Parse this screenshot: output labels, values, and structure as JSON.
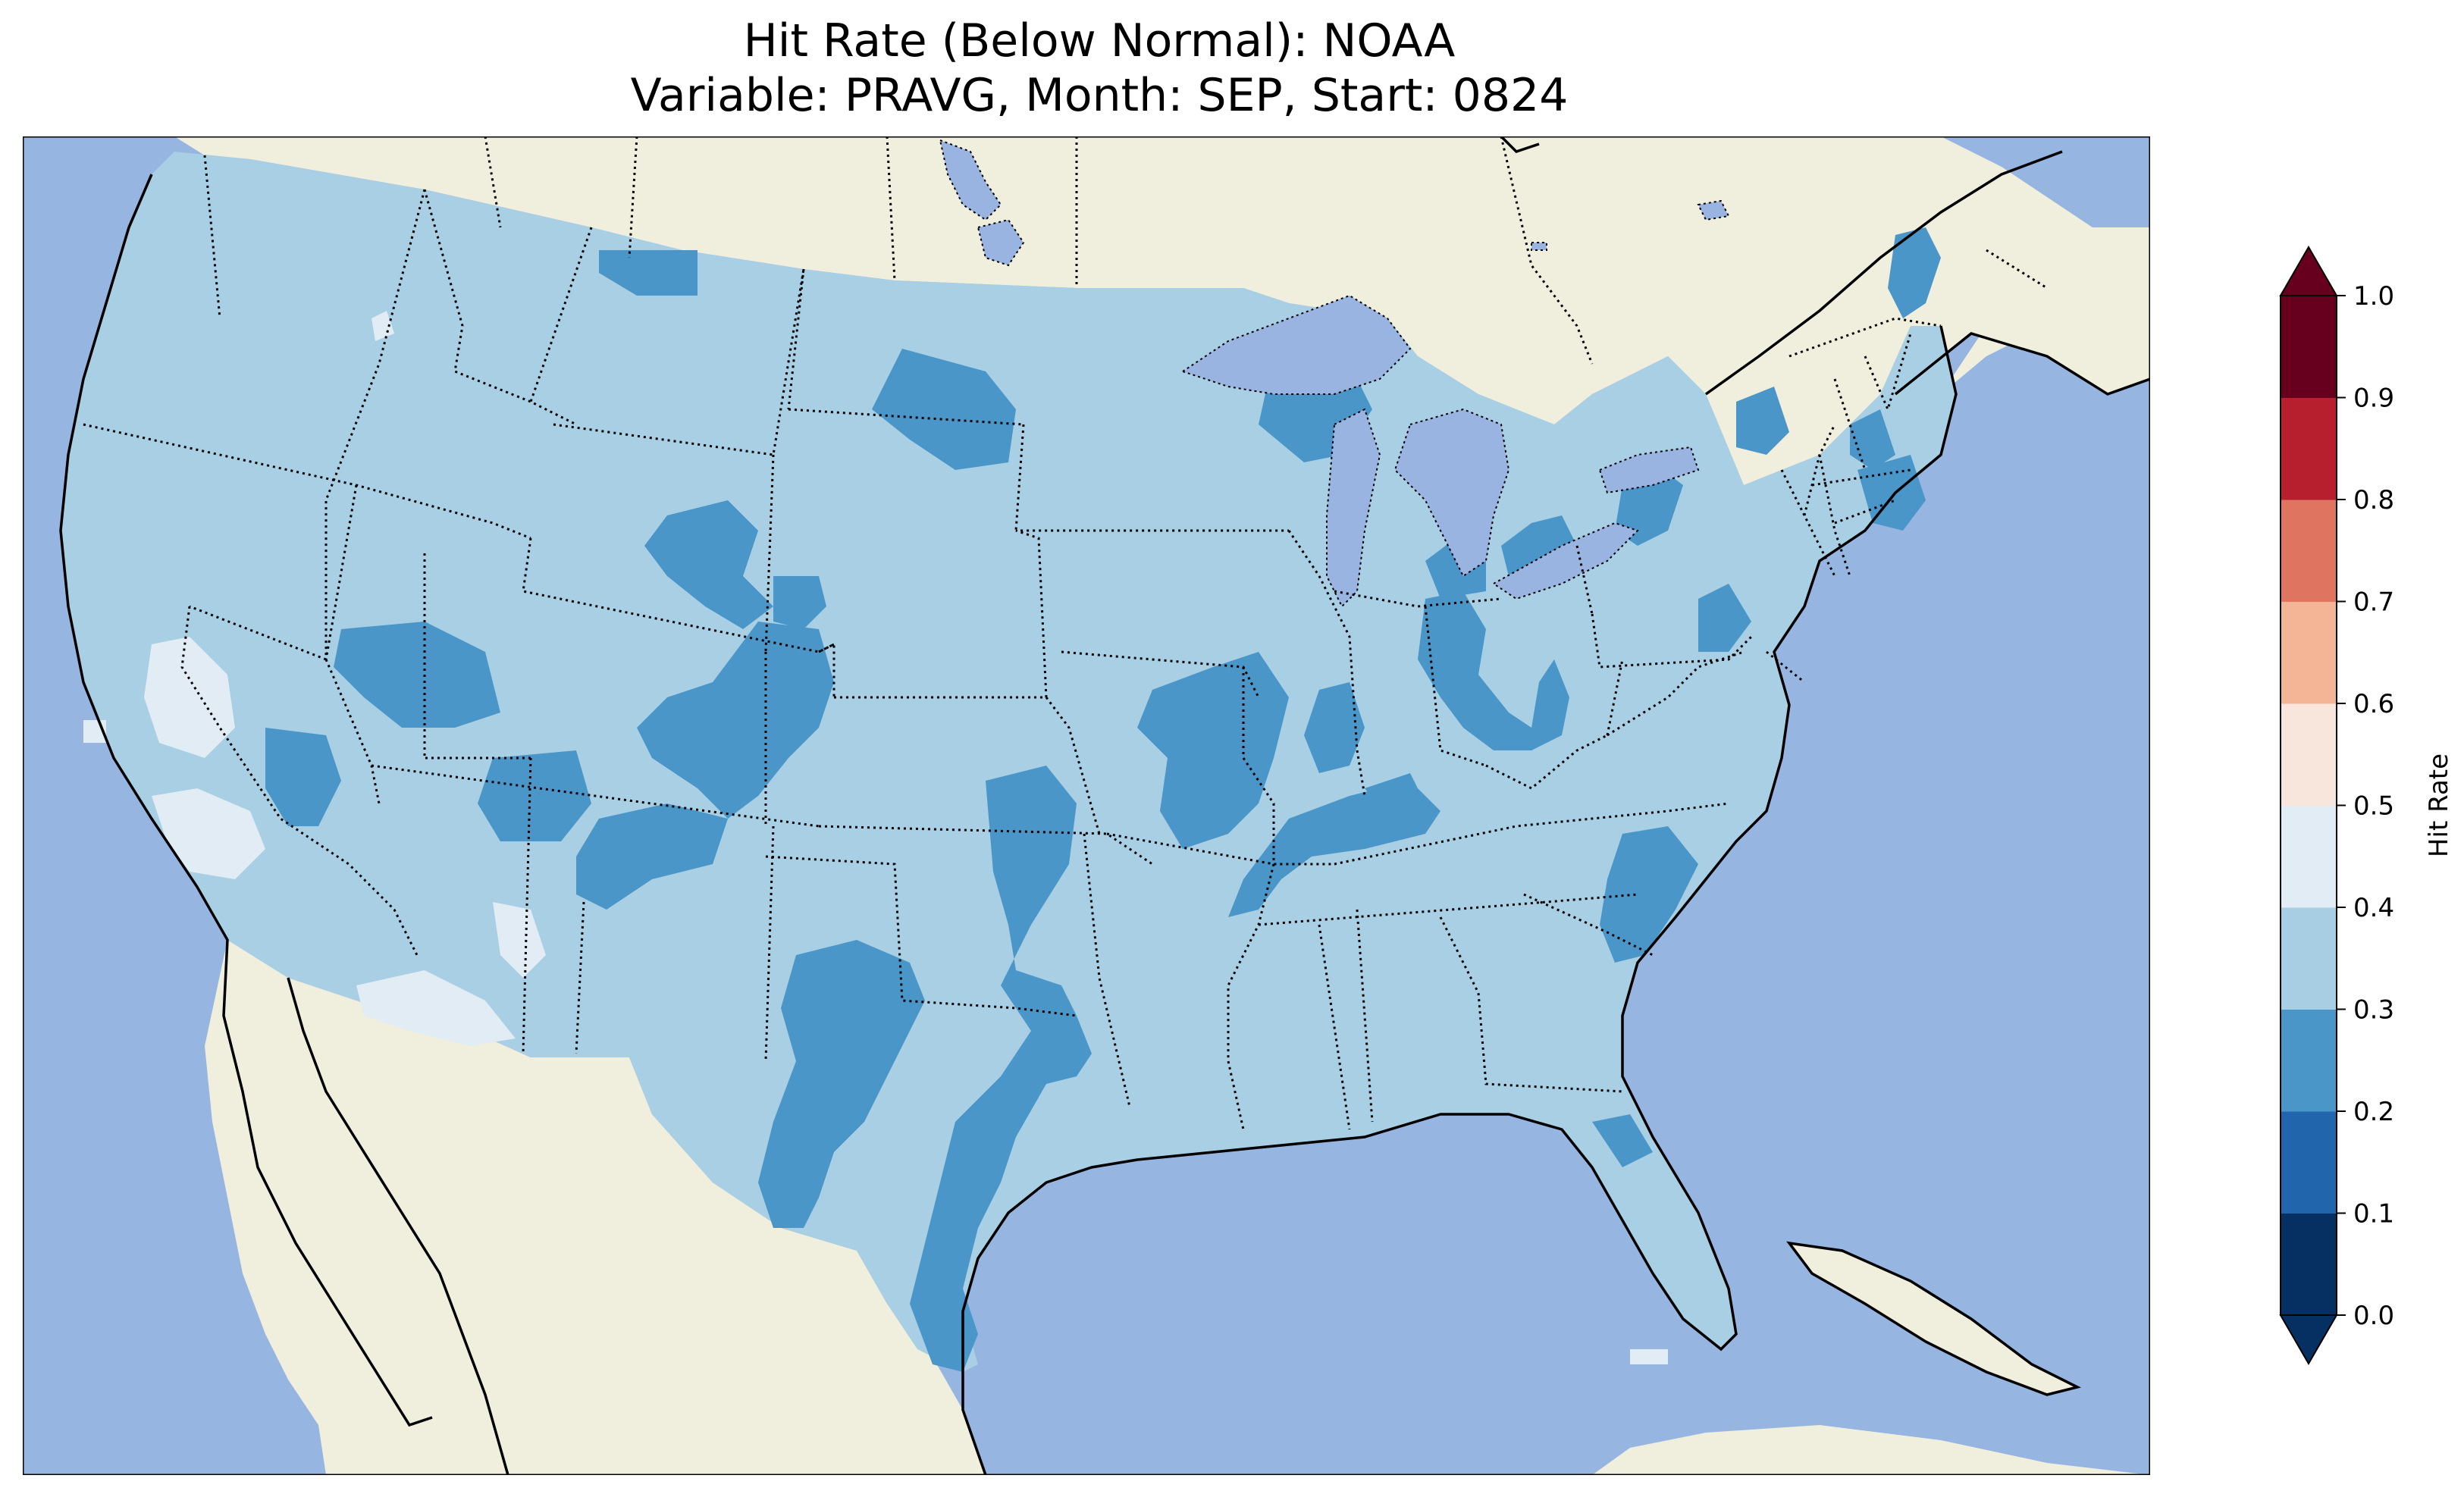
{
  "title": {
    "line1": "Hit Rate (Below Normal): NOAA",
    "line2": "Variable: PRAVG, Month: SEP, Start: 0824"
  },
  "map": {
    "ocean_color": "#96b5e0",
    "land_color": "#f0eedc",
    "lake_color": "#9ab4e2",
    "domain_fill_color": "#a8cfe3",
    "region": "Contiguous United States"
  },
  "colorbar": {
    "label": "Hit Rate",
    "ticks": [
      "0.0",
      "0.1",
      "0.2",
      "0.3",
      "0.4",
      "0.5",
      "0.6",
      "0.7",
      "0.8",
      "0.9",
      "1.0"
    ],
    "bins": [
      {
        "from": 0.0,
        "to": 0.1,
        "color": "#053061"
      },
      {
        "from": 0.1,
        "to": 0.2,
        "color": "#2166ac"
      },
      {
        "from": 0.2,
        "to": 0.3,
        "color": "#4a96c8"
      },
      {
        "from": 0.3,
        "to": 0.4,
        "color": "#a7cee3"
      },
      {
        "from": 0.4,
        "to": 0.5,
        "color": "#e1ecf4"
      },
      {
        "from": 0.5,
        "to": 0.6,
        "color": "#f8e6dd"
      },
      {
        "from": 0.6,
        "to": 0.7,
        "color": "#f4b596"
      },
      {
        "from": 0.7,
        "to": 0.8,
        "color": "#df7560"
      },
      {
        "from": 0.8,
        "to": 0.9,
        "color": "#b71e2e"
      },
      {
        "from": 0.9,
        "to": 1.0,
        "color": "#67001f"
      }
    ],
    "extend": "both"
  }
}
